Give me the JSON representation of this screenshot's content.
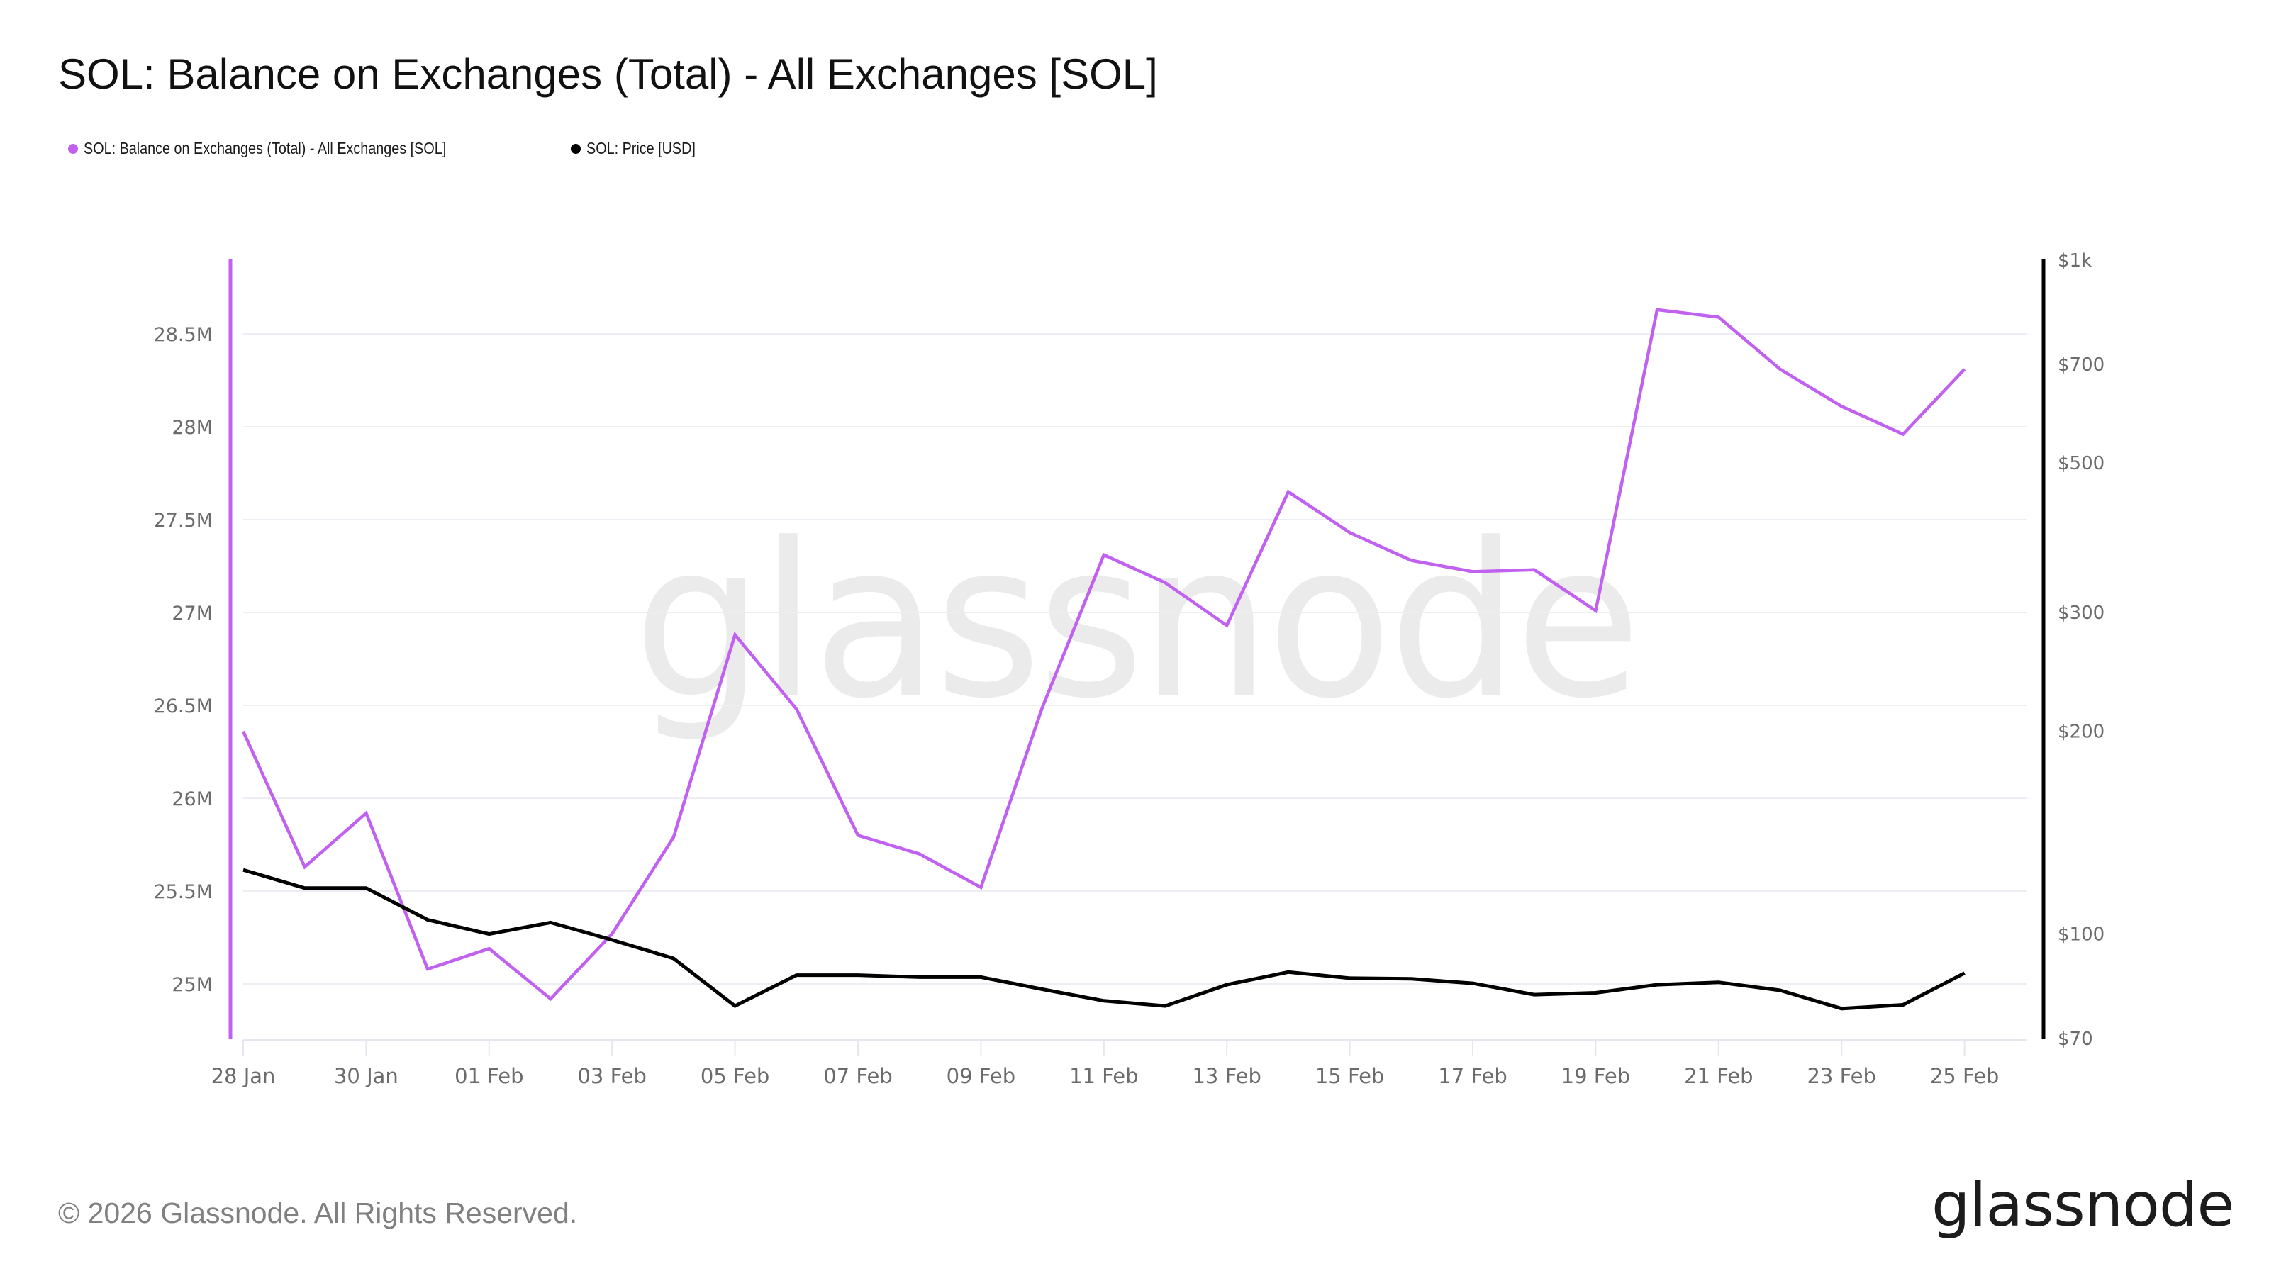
{
  "header": {
    "title": "SOL: Balance on Exchanges (Total) - All Exchanges [SOL]"
  },
  "legend": [
    {
      "label": "SOL: Balance on Exchanges (Total) - All Exchanges [SOL]",
      "color": "#c061f0"
    },
    {
      "label": "SOL: Price [USD]",
      "color": "#000000"
    }
  ],
  "watermark": "glassnode",
  "footer": {
    "copyright": "© 2026 Glassnode. All Rights Reserved.",
    "logo": "glassnode"
  },
  "colors": {
    "balance": "#c061f0",
    "price": "#000000",
    "grid": "#eceef3",
    "tick_label": "#6b6b6b",
    "watermark": "#ebebeb"
  },
  "chart_data": {
    "type": "line",
    "title": "SOL: Balance on Exchanges (Total) - All Exchanges [SOL]",
    "xlabel": "",
    "ylabel": "",
    "x": [
      "28 Jan",
      "29 Jan",
      "30 Jan",
      "31 Jan",
      "01 Feb",
      "02 Feb",
      "03 Feb",
      "04 Feb",
      "05 Feb",
      "06 Feb",
      "07 Feb",
      "08 Feb",
      "09 Feb",
      "10 Feb",
      "11 Feb",
      "12 Feb",
      "13 Feb",
      "14 Feb",
      "15 Feb",
      "16 Feb",
      "17 Feb",
      "18 Feb",
      "19 Feb",
      "20 Feb",
      "21 Feb",
      "22 Feb",
      "23 Feb",
      "24 Feb",
      "25 Feb"
    ],
    "x_tick_labels": [
      "28 Jan",
      "30 Jan",
      "01 Feb",
      "03 Feb",
      "05 Feb",
      "07 Feb",
      "09 Feb",
      "11 Feb",
      "13 Feb",
      "15 Feb",
      "17 Feb",
      "19 Feb",
      "21 Feb",
      "23 Feb",
      "25 Feb"
    ],
    "series": [
      {
        "name": "SOL: Balance on Exchanges (Total) - All Exchanges [SOL]",
        "axis": "left",
        "unit": "SOL",
        "values": [
          26360000,
          25630000,
          25920000,
          25080000,
          25190000,
          24920000,
          25270000,
          25790000,
          26880000,
          26480000,
          25800000,
          25700000,
          25520000,
          26490000,
          27310000,
          27160000,
          26930000,
          27650000,
          27430000,
          27280000,
          27220000,
          27230000,
          27010000,
          28630000,
          28590000,
          28310000,
          28110000,
          27960000,
          28310000
        ]
      },
      {
        "name": "SOL: Price [USD]",
        "axis": "right",
        "unit": "USD",
        "values": [
          124.5,
          117,
          117,
          105,
          100,
          104,
          98,
          92,
          78.2,
          86.9,
          86.9,
          86.3,
          86.3,
          82.8,
          79.6,
          78.2,
          84.1,
          87.8,
          86,
          85.8,
          84.5,
          81.3,
          81.8,
          84.1,
          84.8,
          82.5,
          77.5,
          78.5,
          87.5
        ]
      }
    ],
    "left_axis": {
      "scale": "linear",
      "ticks": [
        25000000,
        25500000,
        26000000,
        26500000,
        27000000,
        27500000,
        28000000,
        28500000
      ],
      "tick_labels": [
        "25M",
        "25.5M",
        "26M",
        "26.5M",
        "27M",
        "27.5M",
        "28M",
        "28.5M"
      ],
      "range": [
        24700000,
        28900000
      ]
    },
    "right_axis": {
      "scale": "log",
      "ticks": [
        70,
        100,
        200,
        300,
        500,
        700,
        1000
      ],
      "tick_labels": [
        "$70",
        "$100",
        "$200",
        "$300",
        "$500",
        "$700",
        "$1k"
      ],
      "range": [
        70,
        1000
      ]
    },
    "grid": true,
    "legend_position": "top-left"
  }
}
